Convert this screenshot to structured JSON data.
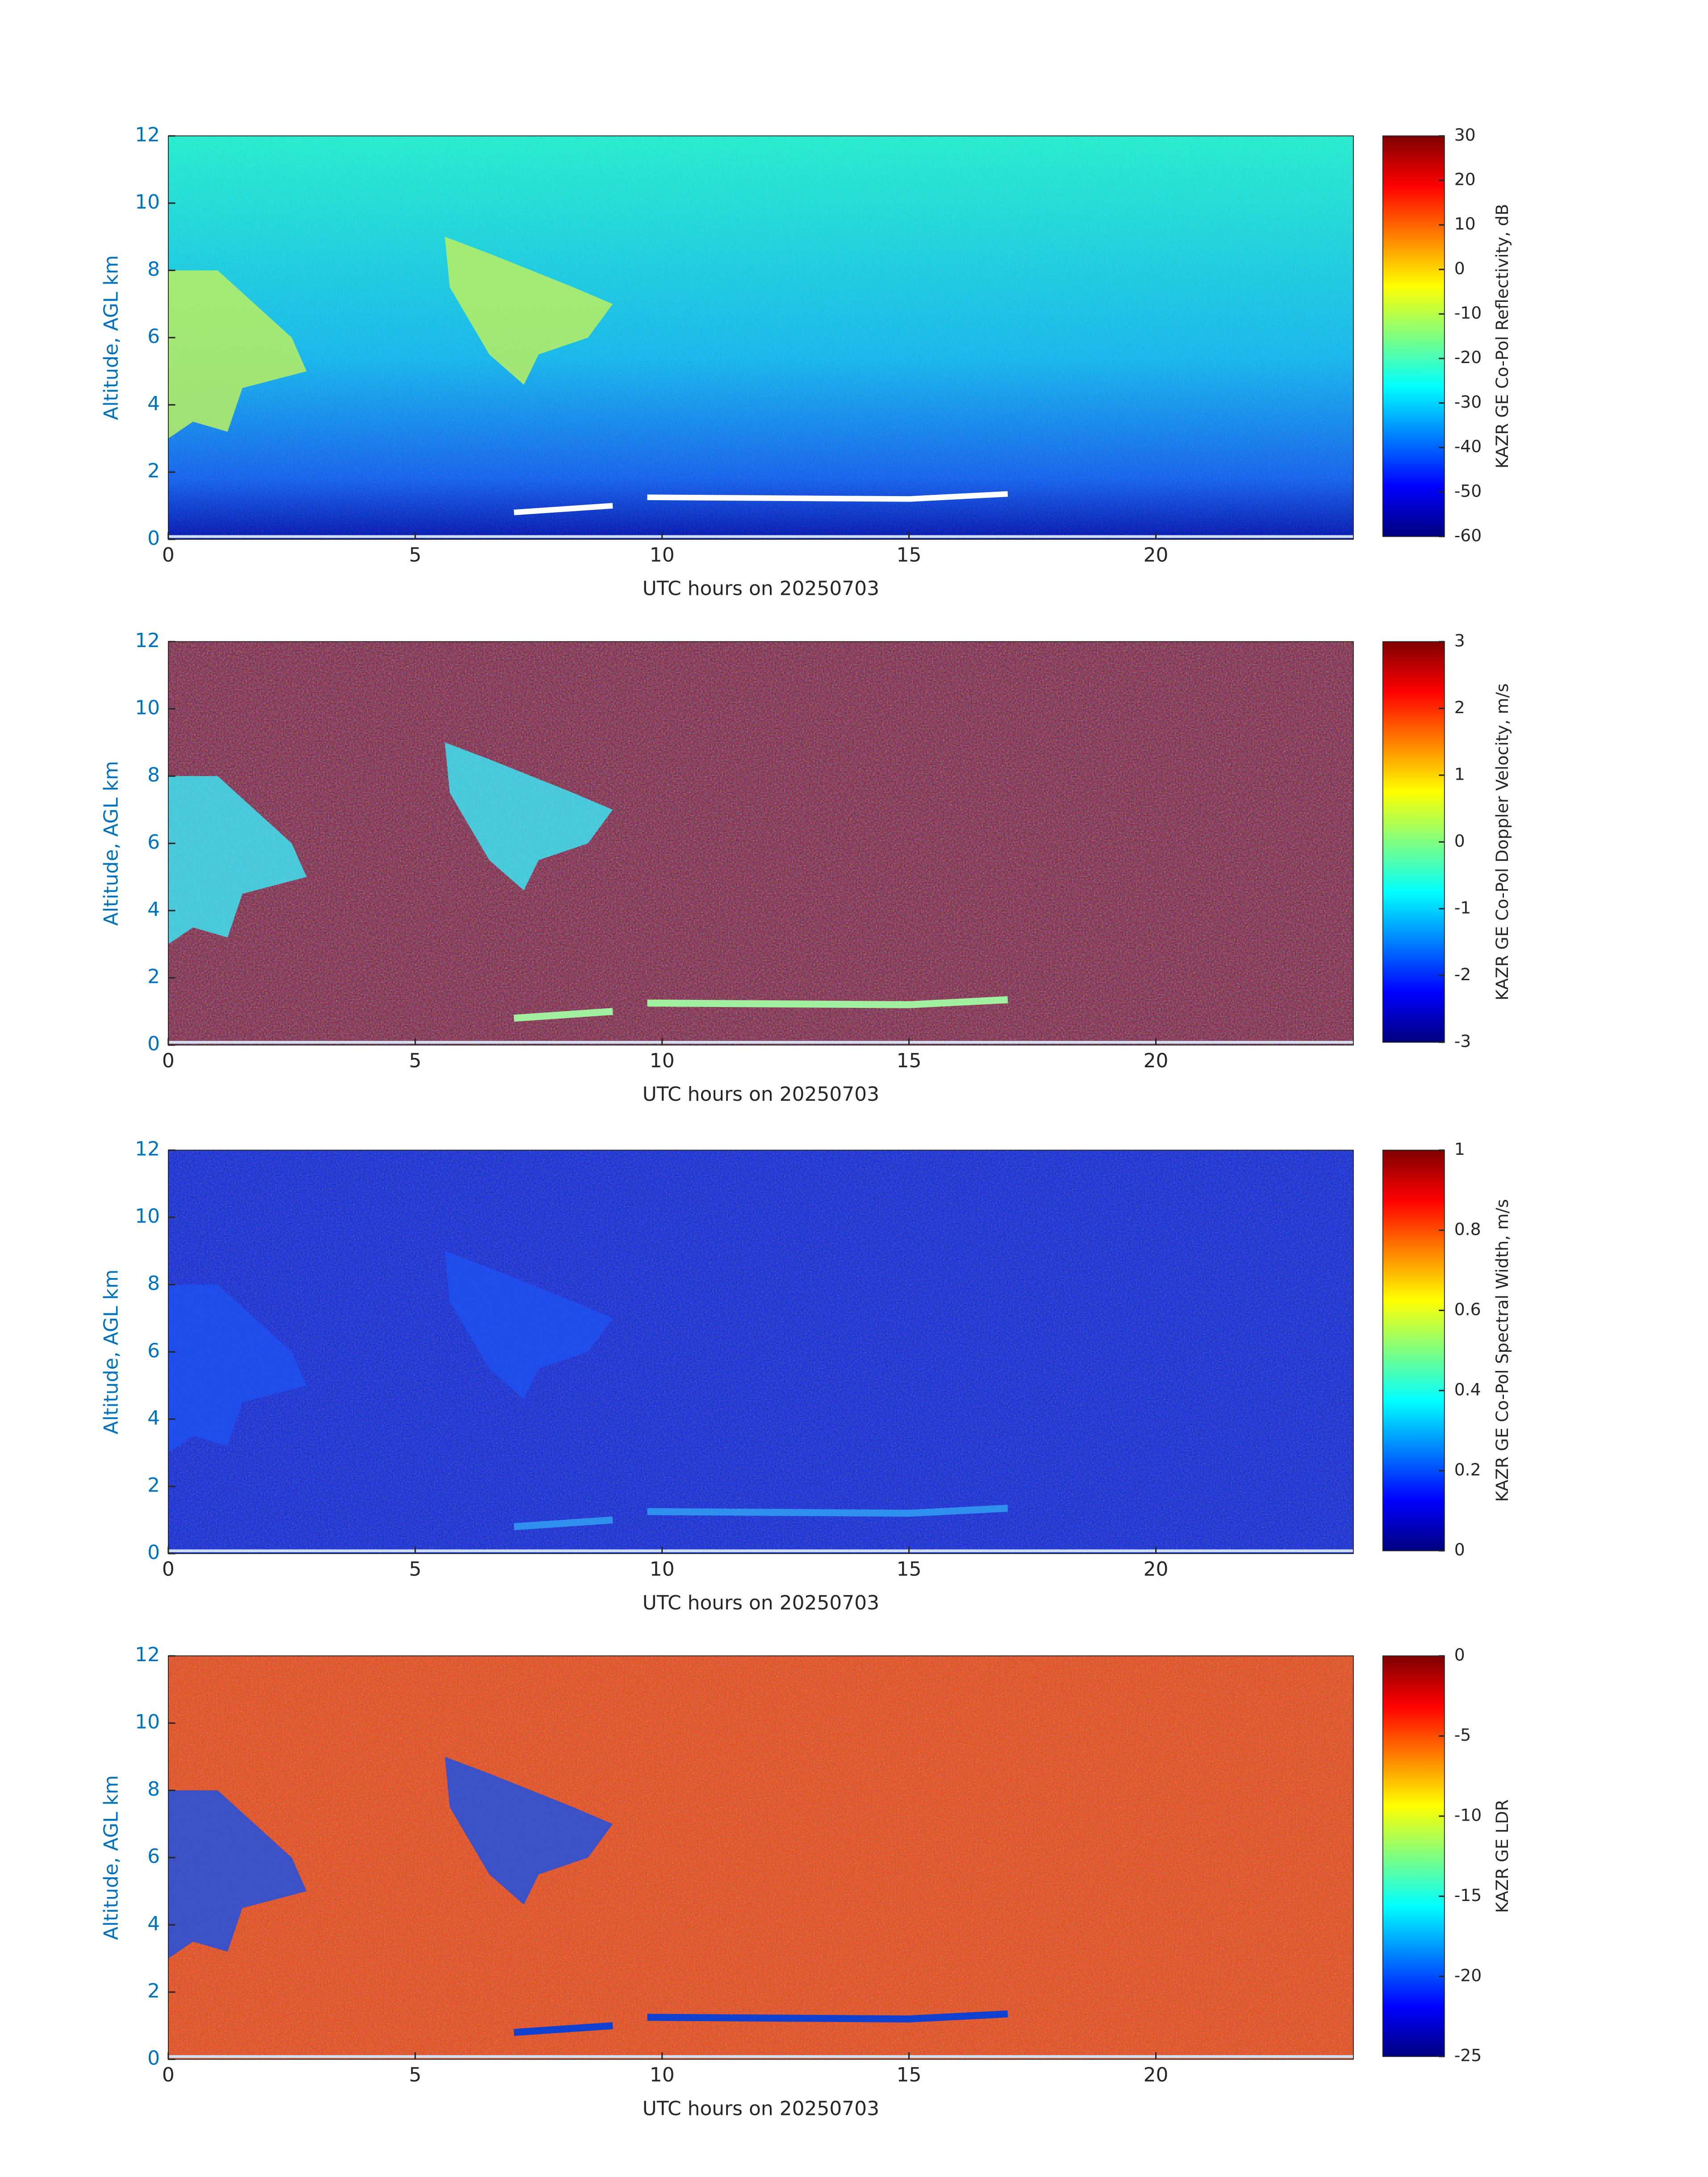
{
  "chart_data": [
    {
      "type": "heatmap",
      "colormap": "jet",
      "x_label": "UTC hours on 20250703",
      "y_label": "Altitude, AGL km",
      "colorbar_label": "KAZR GE Co-Pol Reflectivity, dB",
      "xlim": [
        0,
        24
      ],
      "xticks": [
        0,
        5,
        10,
        15,
        20
      ],
      "ylim": [
        0,
        12
      ],
      "yticks": [
        0,
        2,
        4,
        6,
        8,
        10,
        12
      ],
      "clim": [
        -60,
        30
      ],
      "cticks": [
        -60,
        -50,
        -40,
        -30,
        -20,
        -10,
        0,
        10,
        20,
        30
      ]
    },
    {
      "type": "heatmap",
      "colormap": "jet",
      "x_label": "UTC hours on 20250703",
      "y_label": "Altitude, AGL km",
      "colorbar_label": "KAZR GE Co-Pol Doppler Velocity, m/s",
      "xlim": [
        0,
        24
      ],
      "xticks": [
        0,
        5,
        10,
        15,
        20
      ],
      "ylim": [
        0,
        12
      ],
      "yticks": [
        0,
        2,
        4,
        6,
        8,
        10,
        12
      ],
      "clim": [
        -3,
        3
      ],
      "cticks": [
        -3,
        -2,
        -1,
        0,
        1,
        2,
        3
      ]
    },
    {
      "type": "heatmap",
      "colormap": "jet",
      "x_label": "UTC hours on 20250703",
      "y_label": "Altitude, AGL km",
      "colorbar_label": "KAZR GE Co-Pol Spectral Width, m/s",
      "xlim": [
        0,
        24
      ],
      "xticks": [
        0,
        5,
        10,
        15,
        20
      ],
      "ylim": [
        0,
        12
      ],
      "yticks": [
        0,
        2,
        4,
        6,
        8,
        10,
        12
      ],
      "clim": [
        0,
        1
      ],
      "cticks": [
        0,
        0.2,
        0.4,
        0.6,
        0.8,
        1
      ]
    },
    {
      "type": "heatmap",
      "colormap": "jet",
      "x_label": "UTC hours on 20250703",
      "y_label": "Altitude, AGL km",
      "colorbar_label": "KAZR GE LDR",
      "xlim": [
        0,
        24
      ],
      "xticks": [
        0,
        5,
        10,
        15,
        20
      ],
      "ylim": [
        0,
        12
      ],
      "yticks": [
        0,
        2,
        4,
        6,
        8,
        10,
        12
      ],
      "clim": [
        -25,
        0
      ],
      "cticks": [
        -25,
        -20,
        -15,
        -10,
        -5,
        0
      ]
    }
  ]
}
